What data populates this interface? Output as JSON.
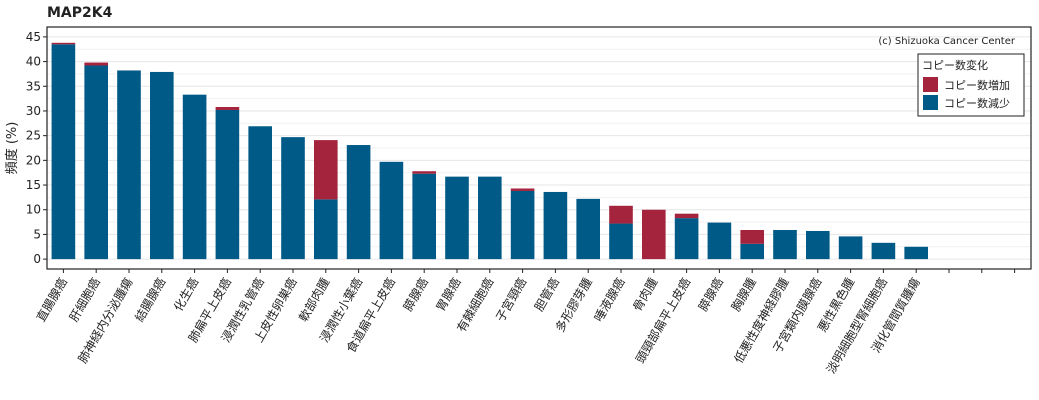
{
  "chart_data": {
    "type": "bar",
    "title": "MAP2K4",
    "ylabel": "頻度 (%)",
    "xlabel": "",
    "ylim": [
      -2,
      47
    ],
    "yticks": [
      0,
      5,
      10,
      15,
      20,
      25,
      30,
      35,
      40,
      45
    ],
    "copyright": "(c) Shizuoka Cancer Center",
    "legend": {
      "title": "コピー数変化",
      "position": "top-right",
      "items": [
        {
          "name": "コピー数増加",
          "color": "#a5243d"
        },
        {
          "name": "コピー数減少",
          "color": "#005a87"
        }
      ]
    },
    "categories": [
      "直腸腺癌",
      "肝細胞癌",
      "肺神経内分泌腫瘍",
      "結腸腺癌",
      "化生癌",
      "肺扁平上皮癌",
      "浸潤性乳管癌",
      "上皮性卵巣癌",
      "軟部肉腫",
      "浸潤性小葉癌",
      "食道扁平上皮癌",
      "膵腺癌",
      "胃腺癌",
      "有棘細胞癌",
      "子宮頸癌",
      "胆管癌",
      "多形膠芽腫",
      "唾液腺癌",
      "骨肉腫",
      "頭頸部扁平上皮癌",
      "膵腺癌",
      "胸腺腫",
      "低悪性度神経膠腫",
      "子宮類内膜腺癌",
      "悪性黒色腫",
      "淡明細胞型腎細胞癌",
      "消化管間質腫瘍",
      "",
      "",
      ""
    ],
    "series": [
      {
        "name": "コピー数減少",
        "color": "#005a87",
        "values": [
          43.5,
          39.2,
          38.2,
          37.9,
          33.3,
          30.2,
          26.9,
          24.7,
          12.1,
          23.1,
          19.7,
          17.3,
          16.7,
          16.7,
          13.8,
          13.6,
          12.2,
          7.2,
          0,
          8.3,
          7.4,
          3.1,
          5.9,
          5.7,
          4.6,
          3.3,
          2.5,
          0,
          0,
          0
        ]
      },
      {
        "name": "コピー数増加",
        "color": "#a5243d",
        "values": [
          0.3,
          0.6,
          0,
          0,
          0,
          0.6,
          0,
          0,
          12.0,
          0,
          0,
          0.5,
          0,
          0,
          0.5,
          0,
          0,
          3.6,
          10.0,
          0.9,
          0,
          2.8,
          0,
          0,
          0,
          0,
          0,
          0,
          0,
          0
        ]
      }
    ]
  }
}
